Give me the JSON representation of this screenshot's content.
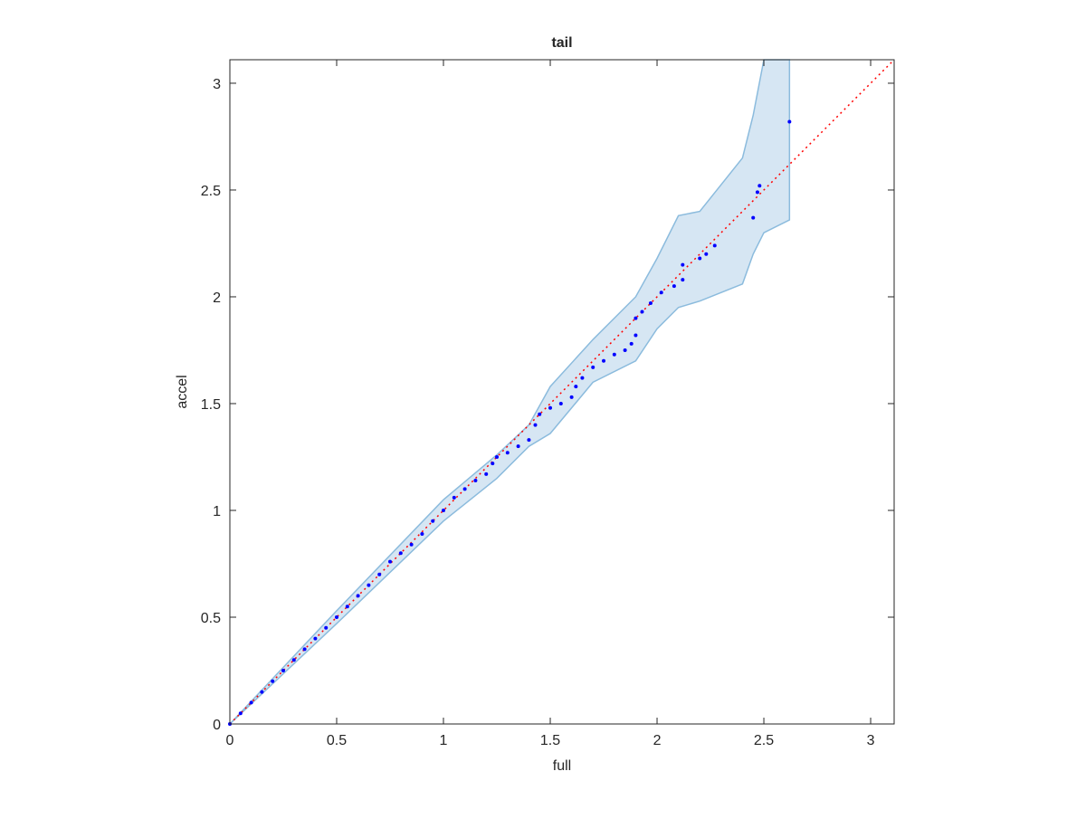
{
  "chart_data": {
    "type": "scatter",
    "title": "tail",
    "x_label": "full",
    "y_label": "accel",
    "xlim": [
      0,
      3.11
    ],
    "ylim": [
      0,
      3.11
    ],
    "xticks": [
      0,
      0.5,
      1,
      1.5,
      2,
      2.5,
      3
    ],
    "yticks": [
      0,
      0.5,
      1,
      1.5,
      2,
      2.5,
      3
    ],
    "series": [
      {
        "color": "#0000ff",
        "x": [
          0,
          0.05,
          0.1,
          0.15,
          0.2,
          0.25,
          0.3,
          0.35,
          0.4,
          0.45,
          0.5,
          0.55,
          0.6,
          0.65,
          0.7,
          0.75,
          0.8,
          0.85,
          0.9,
          0.95,
          1.0,
          1.05,
          1.1,
          1.15,
          1.2,
          1.23,
          1.25,
          1.3,
          1.35,
          1.4,
          1.43,
          1.45,
          1.5,
          1.55,
          1.6,
          1.62,
          1.65,
          1.7,
          1.75,
          1.8,
          1.85,
          1.88,
          1.9,
          1.9,
          1.93,
          1.97,
          2.02,
          2.08,
          2.12,
          2.12,
          2.2,
          2.23,
          2.27,
          2.45,
          2.47,
          2.48,
          2.62
        ],
        "values": [
          0,
          0.05,
          0.1,
          0.15,
          0.2,
          0.25,
          0.3,
          0.35,
          0.4,
          0.45,
          0.5,
          0.55,
          0.6,
          0.65,
          0.7,
          0.76,
          0.8,
          0.84,
          0.89,
          0.95,
          1.0,
          1.06,
          1.1,
          1.14,
          1.17,
          1.22,
          1.25,
          1.27,
          1.3,
          1.33,
          1.4,
          1.45,
          1.48,
          1.5,
          1.53,
          1.58,
          1.62,
          1.67,
          1.7,
          1.73,
          1.75,
          1.78,
          1.82,
          1.9,
          1.93,
          1.97,
          2.02,
          2.05,
          2.08,
          2.15,
          2.18,
          2.2,
          2.24,
          2.37,
          2.49,
          2.52,
          2.82
        ]
      }
    ],
    "band": {
      "fill": "#d6e6f3",
      "stroke": "#8bbbdd",
      "x": [
        0,
        0.5,
        1.0,
        1.25,
        1.4,
        1.5,
        1.7,
        1.9,
        2.0,
        2.1,
        2.2,
        2.4,
        2.45,
        2.5,
        2.62
      ],
      "upper": [
        0,
        0.53,
        1.05,
        1.26,
        1.4,
        1.58,
        1.8,
        2.0,
        2.18,
        2.38,
        2.4,
        2.65,
        2.85,
        3.11,
        3.11
      ],
      "lower": [
        0,
        0.47,
        0.95,
        1.15,
        1.3,
        1.36,
        1.6,
        1.7,
        1.85,
        1.95,
        1.98,
        2.06,
        2.2,
        2.3,
        2.36
      ]
    },
    "reference_line": {
      "color": "#ff0000",
      "x": [
        0,
        3.11
      ],
      "values": [
        0,
        3.11
      ]
    }
  }
}
